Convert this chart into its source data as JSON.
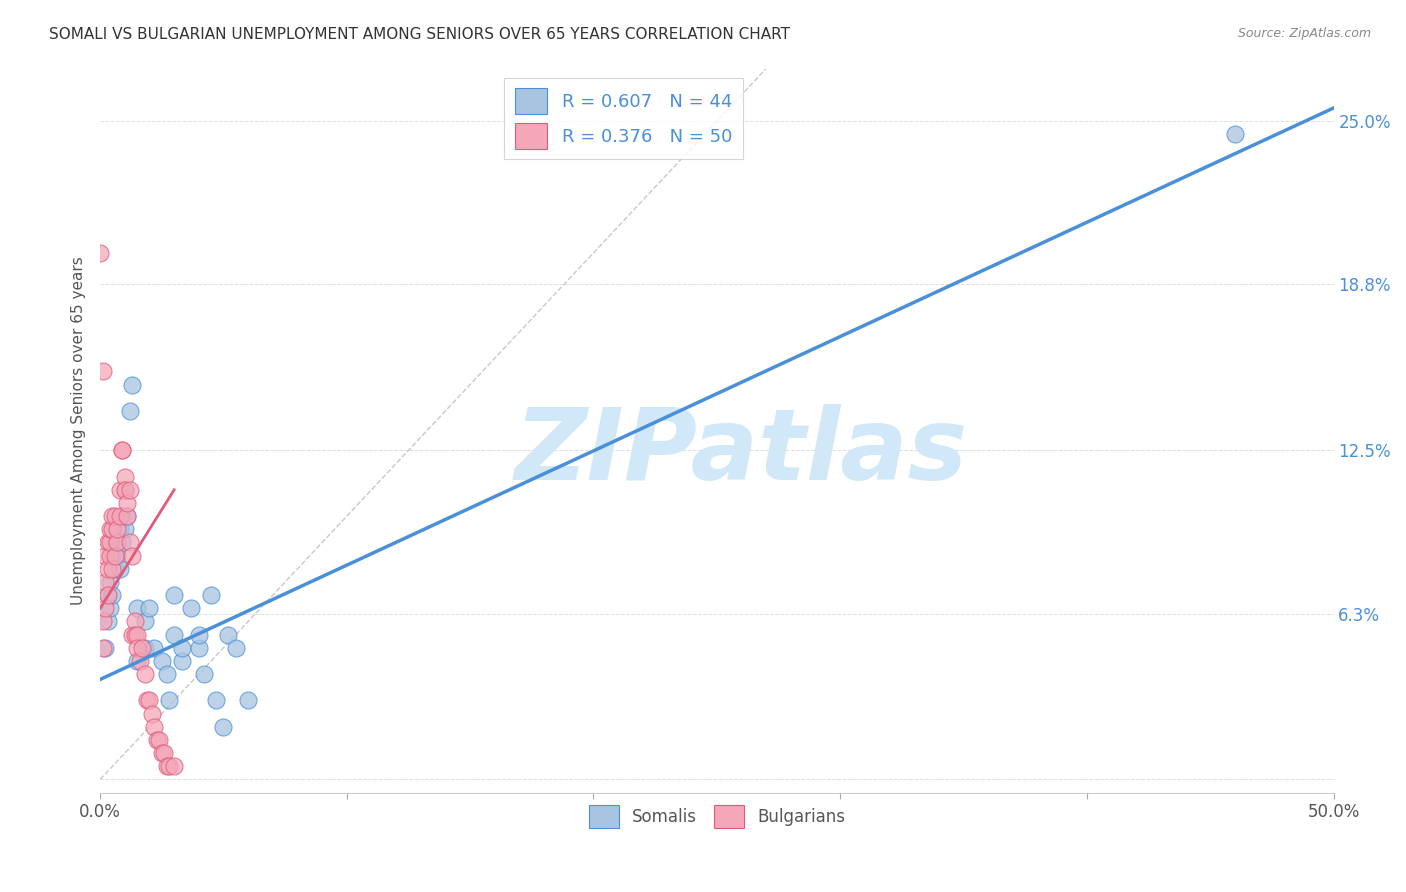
{
  "title": "SOMALI VS BULGARIAN UNEMPLOYMENT AMONG SENIORS OVER 65 YEARS CORRELATION CHART",
  "source": "Source: ZipAtlas.com",
  "ylabel": "Unemployment Among Seniors over 65 years",
  "xlim": [
    0,
    0.5
  ],
  "ylim": [
    -0.005,
    0.27
  ],
  "ytick_positions": [
    0.0,
    0.063,
    0.125,
    0.188,
    0.25
  ],
  "ytick_labels": [
    "",
    "6.3%",
    "12.5%",
    "18.8%",
    "25.0%"
  ],
  "somali_color": "#a8c4e0",
  "bulgarian_color": "#f4a7b9",
  "somali_line_color": "#4a90d9",
  "bulgarian_line_color": "#e05a7a",
  "R_somali": 0.607,
  "N_somali": 44,
  "R_bulgarian": 0.376,
  "N_bulgarian": 50,
  "watermark": "ZIPatlas",
  "watermark_color": "#d0e8f8",
  "somali_x": [
    0.002,
    0.003,
    0.003,
    0.004,
    0.004,
    0.005,
    0.005,
    0.006,
    0.006,
    0.007,
    0.007,
    0.008,
    0.008,
    0.009,
    0.009,
    0.01,
    0.01,
    0.011,
    0.012,
    0.013,
    0.015,
    0.015,
    0.018,
    0.018,
    0.02,
    0.022,
    0.025,
    0.027,
    0.028,
    0.03,
    0.03,
    0.033,
    0.033,
    0.037,
    0.04,
    0.04,
    0.042,
    0.045,
    0.047,
    0.05,
    0.052,
    0.055,
    0.06,
    0.46
  ],
  "somali_y": [
    0.05,
    0.06,
    0.07,
    0.065,
    0.075,
    0.07,
    0.085,
    0.08,
    0.09,
    0.085,
    0.095,
    0.08,
    0.095,
    0.09,
    0.1,
    0.095,
    0.11,
    0.1,
    0.14,
    0.15,
    0.065,
    0.045,
    0.05,
    0.06,
    0.065,
    0.05,
    0.045,
    0.04,
    0.03,
    0.055,
    0.07,
    0.045,
    0.05,
    0.065,
    0.05,
    0.055,
    0.04,
    0.07,
    0.03,
    0.02,
    0.055,
    0.05,
    0.03,
    0.245
  ],
  "bulgarian_x": [
    0.0,
    0.001,
    0.001,
    0.001,
    0.002,
    0.002,
    0.002,
    0.003,
    0.003,
    0.003,
    0.004,
    0.004,
    0.004,
    0.005,
    0.005,
    0.005,
    0.006,
    0.006,
    0.007,
    0.007,
    0.008,
    0.008,
    0.009,
    0.009,
    0.01,
    0.01,
    0.011,
    0.011,
    0.012,
    0.012,
    0.013,
    0.013,
    0.014,
    0.014,
    0.015,
    0.015,
    0.016,
    0.017,
    0.018,
    0.019,
    0.02,
    0.021,
    0.022,
    0.023,
    0.024,
    0.025,
    0.026,
    0.027,
    0.028,
    0.03
  ],
  "bulgarian_y": [
    0.2,
    0.155,
    0.06,
    0.05,
    0.065,
    0.075,
    0.085,
    0.07,
    0.08,
    0.09,
    0.085,
    0.09,
    0.095,
    0.08,
    0.095,
    0.1,
    0.085,
    0.1,
    0.09,
    0.095,
    0.1,
    0.11,
    0.125,
    0.125,
    0.115,
    0.11,
    0.1,
    0.105,
    0.11,
    0.09,
    0.085,
    0.055,
    0.06,
    0.055,
    0.055,
    0.05,
    0.045,
    0.05,
    0.04,
    0.03,
    0.03,
    0.025,
    0.02,
    0.015,
    0.015,
    0.01,
    0.01,
    0.005,
    0.005,
    0.005
  ],
  "somali_trend_x": [
    0.0,
    0.5
  ],
  "somali_trend_y": [
    0.038,
    0.255
  ],
  "bulgarian_trend_x": [
    0.0,
    0.03
  ],
  "bulgarian_trend_y": [
    0.065,
    0.11
  ],
  "ref_line_x": [
    0.0,
    0.27
  ],
  "ref_line_y": [
    0.0,
    0.27
  ]
}
